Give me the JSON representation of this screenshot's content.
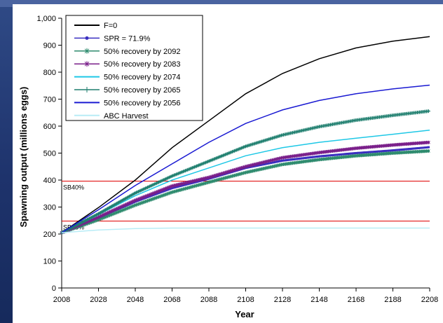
{
  "chart_data": {
    "type": "line",
    "xlabel": "Year",
    "ylabel": "Spawning output (millions eggs)",
    "xlim": [
      2008,
      2208
    ],
    "ylim": [
      0,
      1000
    ],
    "x_ticks": [
      "2008",
      "2028",
      "2048",
      "2068",
      "2088",
      "2108",
      "2128",
      "2148",
      "2168",
      "2188",
      "2208"
    ],
    "y_ticks": [
      "0",
      "100",
      "200",
      "300",
      "400",
      "500",
      "600",
      "700",
      "800",
      "900",
      "1,000"
    ],
    "legend_position": "top-left",
    "series": [
      {
        "name": "F=0",
        "color": "#000000",
        "marker": "none",
        "x": [
          2008,
          2028,
          2048,
          2068,
          2088,
          2108,
          2128,
          2148,
          2168,
          2188,
          2208
        ],
        "values": [
          205,
          298,
          400,
          520,
          620,
          720,
          795,
          850,
          890,
          915,
          932
        ]
      },
      {
        "name": "SPR = 71.9%",
        "color": "#3a2fc0",
        "marker": "dot",
        "x": [
          2008,
          2028,
          2048,
          2068,
          2088,
          2108,
          2128,
          2148,
          2168,
          2188,
          2208
        ],
        "values": [
          205,
          260,
          320,
          370,
          405,
          445,
          472,
          488,
          500,
          510,
          522
        ]
      },
      {
        "name": "50% recovery by 2092",
        "color": "#2e8b6e",
        "marker": "asterisk",
        "x": [
          2008,
          2028,
          2048,
          2068,
          2088,
          2108,
          2128,
          2148,
          2168,
          2188,
          2208
        ],
        "values": [
          205,
          253,
          307,
          355,
          392,
          428,
          458,
          476,
          490,
          500,
          508
        ]
      },
      {
        "name": "50% recovery by 2083",
        "color": "#7a1f8a",
        "marker": "asterisk",
        "x": [
          2008,
          2028,
          2048,
          2068,
          2088,
          2108,
          2128,
          2148,
          2168,
          2188,
          2208
        ],
        "values": [
          205,
          263,
          325,
          378,
          410,
          450,
          483,
          502,
          518,
          530,
          540
        ]
      },
      {
        "name": "50% recovery by 2074",
        "color": "#1ec8e6",
        "marker": "none",
        "x": [
          2008,
          2028,
          2048,
          2068,
          2088,
          2108,
          2128,
          2148,
          2168,
          2188,
          2208
        ],
        "values": [
          205,
          272,
          342,
          400,
          445,
          490,
          520,
          540,
          555,
          570,
          585
        ]
      },
      {
        "name": "50% recovery by 2065",
        "color": "#1f7f6f",
        "marker": "plus",
        "x": [
          2008,
          2028,
          2048,
          2068,
          2088,
          2108,
          2128,
          2148,
          2168,
          2188,
          2208
        ],
        "values": [
          205,
          275,
          352,
          415,
          470,
          525,
          567,
          598,
          622,
          640,
          656
        ]
      },
      {
        "name": "50% recovery by 2056",
        "color": "#1a1ad2",
        "marker": "none",
        "x": [
          2008,
          2028,
          2048,
          2068,
          2088,
          2108,
          2128,
          2148,
          2168,
          2188,
          2208
        ],
        "values": [
          205,
          290,
          380,
          460,
          540,
          610,
          660,
          695,
          720,
          738,
          752
        ]
      },
      {
        "name": "ABC Harvest",
        "color": "#b8ecf6",
        "marker": "none",
        "x": [
          2008,
          2028,
          2048,
          2068,
          2088,
          2108,
          2128,
          2148,
          2168,
          2188,
          2208
        ],
        "values": [
          205,
          215,
          220,
          222,
          222,
          222,
          222,
          222,
          222,
          222,
          222
        ]
      }
    ],
    "reference_lines": [
      {
        "label": "SB40%",
        "y": 396,
        "color": "#e00000"
      },
      {
        "label": "SB25%",
        "y": 248,
        "color": "#e00000"
      }
    ]
  }
}
